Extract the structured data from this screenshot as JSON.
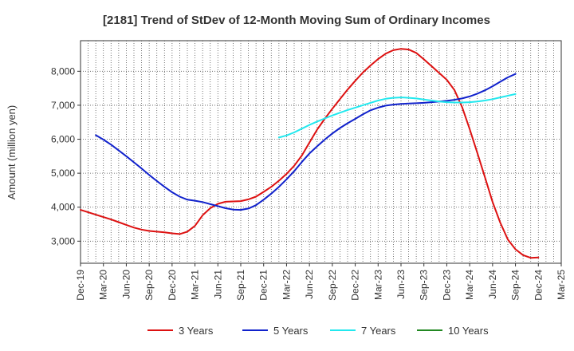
{
  "chart_data": {
    "type": "line",
    "title": "[2181]  Trend of StDev of 12-Month Moving Sum of Ordinary Incomes",
    "xlabel": "",
    "ylabel": "Amount (million yen)",
    "ylim": [
      2350,
      8900
    ],
    "yticks": [
      3000,
      4000,
      5000,
      6000,
      7000,
      8000
    ],
    "ytick_labels": [
      "3,000",
      "4,000",
      "5,000",
      "6,000",
      "7,000",
      "8,000"
    ],
    "x_tick_labels": [
      "Dec-19",
      "Mar-20",
      "Jun-20",
      "Sep-20",
      "Dec-20",
      "Mar-21",
      "Jun-21",
      "Sep-21",
      "Dec-21",
      "Mar-22",
      "Jun-22",
      "Sep-22",
      "Dec-22",
      "Mar-23",
      "Jun-23",
      "Sep-23",
      "Dec-23",
      "Mar-24",
      "Jun-24",
      "Sep-24",
      "Dec-24",
      "Mar-25"
    ],
    "x_months": 63,
    "grid": true,
    "legend_position": "bottom",
    "series": [
      {
        "name": "3 Years",
        "color": "#dd1111",
        "start_month": 0,
        "values": [
          3920,
          3850,
          3780,
          3710,
          3640,
          3560,
          3480,
          3400,
          3340,
          3300,
          3280,
          3260,
          3230,
          3210,
          3280,
          3450,
          3760,
          3970,
          4100,
          4160,
          4170,
          4180,
          4230,
          4310,
          4450,
          4600,
          4780,
          4980,
          5220,
          5520,
          5900,
          6280,
          6600,
          6900,
          7180,
          7460,
          7720,
          7960,
          8170,
          8360,
          8520,
          8620,
          8660,
          8640,
          8540,
          8350,
          8150,
          7950,
          7750,
          7450,
          6950,
          6300,
          5600,
          4880,
          4150,
          3550,
          3050,
          2760,
          2590,
          2510,
          2520
        ]
      },
      {
        "name": "5 Years",
        "color": "#1122cc",
        "start_month": 2,
        "values": [
          6120,
          5990,
          5840,
          5670,
          5500,
          5320,
          5140,
          4950,
          4770,
          4600,
          4440,
          4310,
          4220,
          4190,
          4150,
          4090,
          4030,
          3970,
          3930,
          3920,
          3960,
          4060,
          4220,
          4400,
          4600,
          4820,
          5060,
          5330,
          5580,
          5790,
          5990,
          6170,
          6330,
          6470,
          6600,
          6730,
          6850,
          6930,
          6990,
          7020,
          7040,
          7050,
          7060,
          7070,
          7090,
          7110,
          7130,
          7160,
          7200,
          7260,
          7340,
          7440,
          7560,
          7690,
          7820,
          7920
        ]
      },
      {
        "name": "7 Years",
        "color": "#22e8ee",
        "start_month": 26,
        "values": [
          6050,
          6110,
          6200,
          6310,
          6420,
          6520,
          6610,
          6700,
          6780,
          6860,
          6930,
          7000,
          7070,
          7140,
          7190,
          7220,
          7230,
          7220,
          7200,
          7170,
          7140,
          7110,
          7090,
          7080,
          7080,
          7090,
          7110,
          7140,
          7180,
          7230,
          7280,
          7330
        ]
      },
      {
        "name": "10 Years",
        "color": "#228822",
        "start_month": 0,
        "values": []
      }
    ]
  }
}
